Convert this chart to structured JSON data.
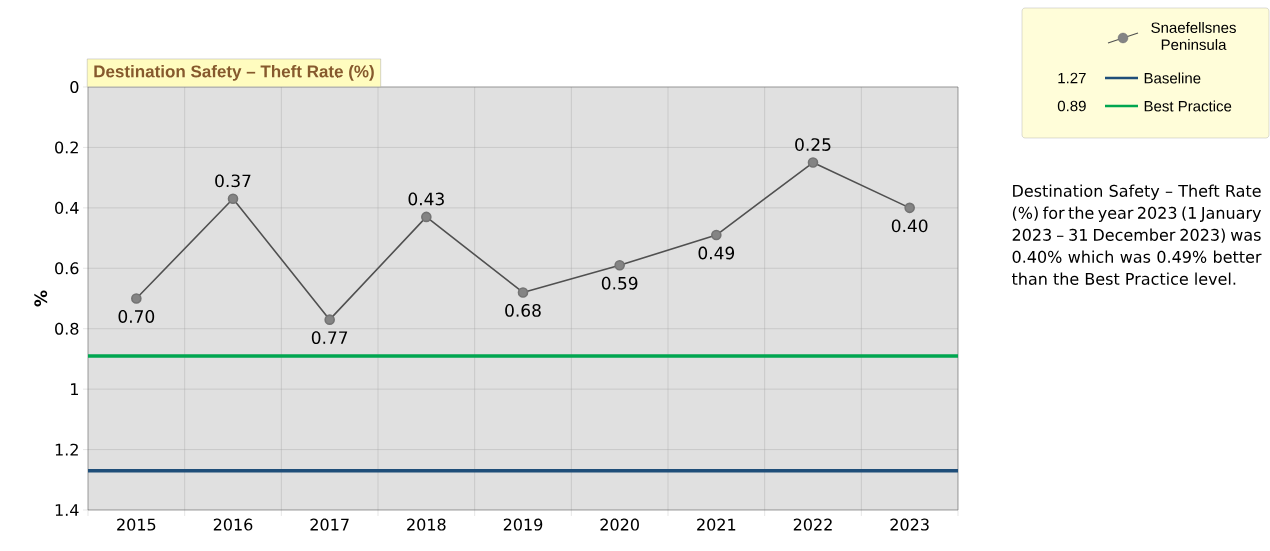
{
  "chart_data": {
    "type": "line",
    "title": "Destination Safety – Theft Rate (%)",
    "ylabel": "%",
    "categories": [
      "2015",
      "2016",
      "2017",
      "2018",
      "2019",
      "2020",
      "2021",
      "2022",
      "2023"
    ],
    "series": [
      {
        "name": "Snaefellsnes Peninsula",
        "color": "#505050",
        "values": [
          0.7,
          0.37,
          0.77,
          0.43,
          0.68,
          0.59,
          0.49,
          0.25,
          0.4
        ],
        "value_labels": [
          "0.70",
          "0.37",
          "0.77",
          "0.43",
          "0.68",
          "0.59",
          "0.49",
          "0.25",
          "0.40"
        ]
      }
    ],
    "ylim": [
      1.4,
      0
    ],
    "yticks": [
      0,
      0.2,
      0.4,
      0.6,
      0.8,
      1,
      1.2,
      1.4
    ],
    "ref_lines": [
      {
        "axis": "y",
        "value": 1.27,
        "label": "Baseline",
        "color": "#1f4e79",
        "line_style": "solid"
      },
      {
        "axis": "y",
        "value": 0.89,
        "label": "Best Practice",
        "color": "#00a650",
        "line_style": "solid"
      }
    ],
    "annotations": [
      "1.27",
      "0.89",
      "Destination Safety – Theft Rate (%) for the year 2023 (1 January 2023 – 31 December 2023) was 0.40% which was 0.49% better than the Best Practice level."
    ],
    "grid": true,
    "legend": "top right",
    "marker": "circle",
    "line_style": "solid"
  }
}
